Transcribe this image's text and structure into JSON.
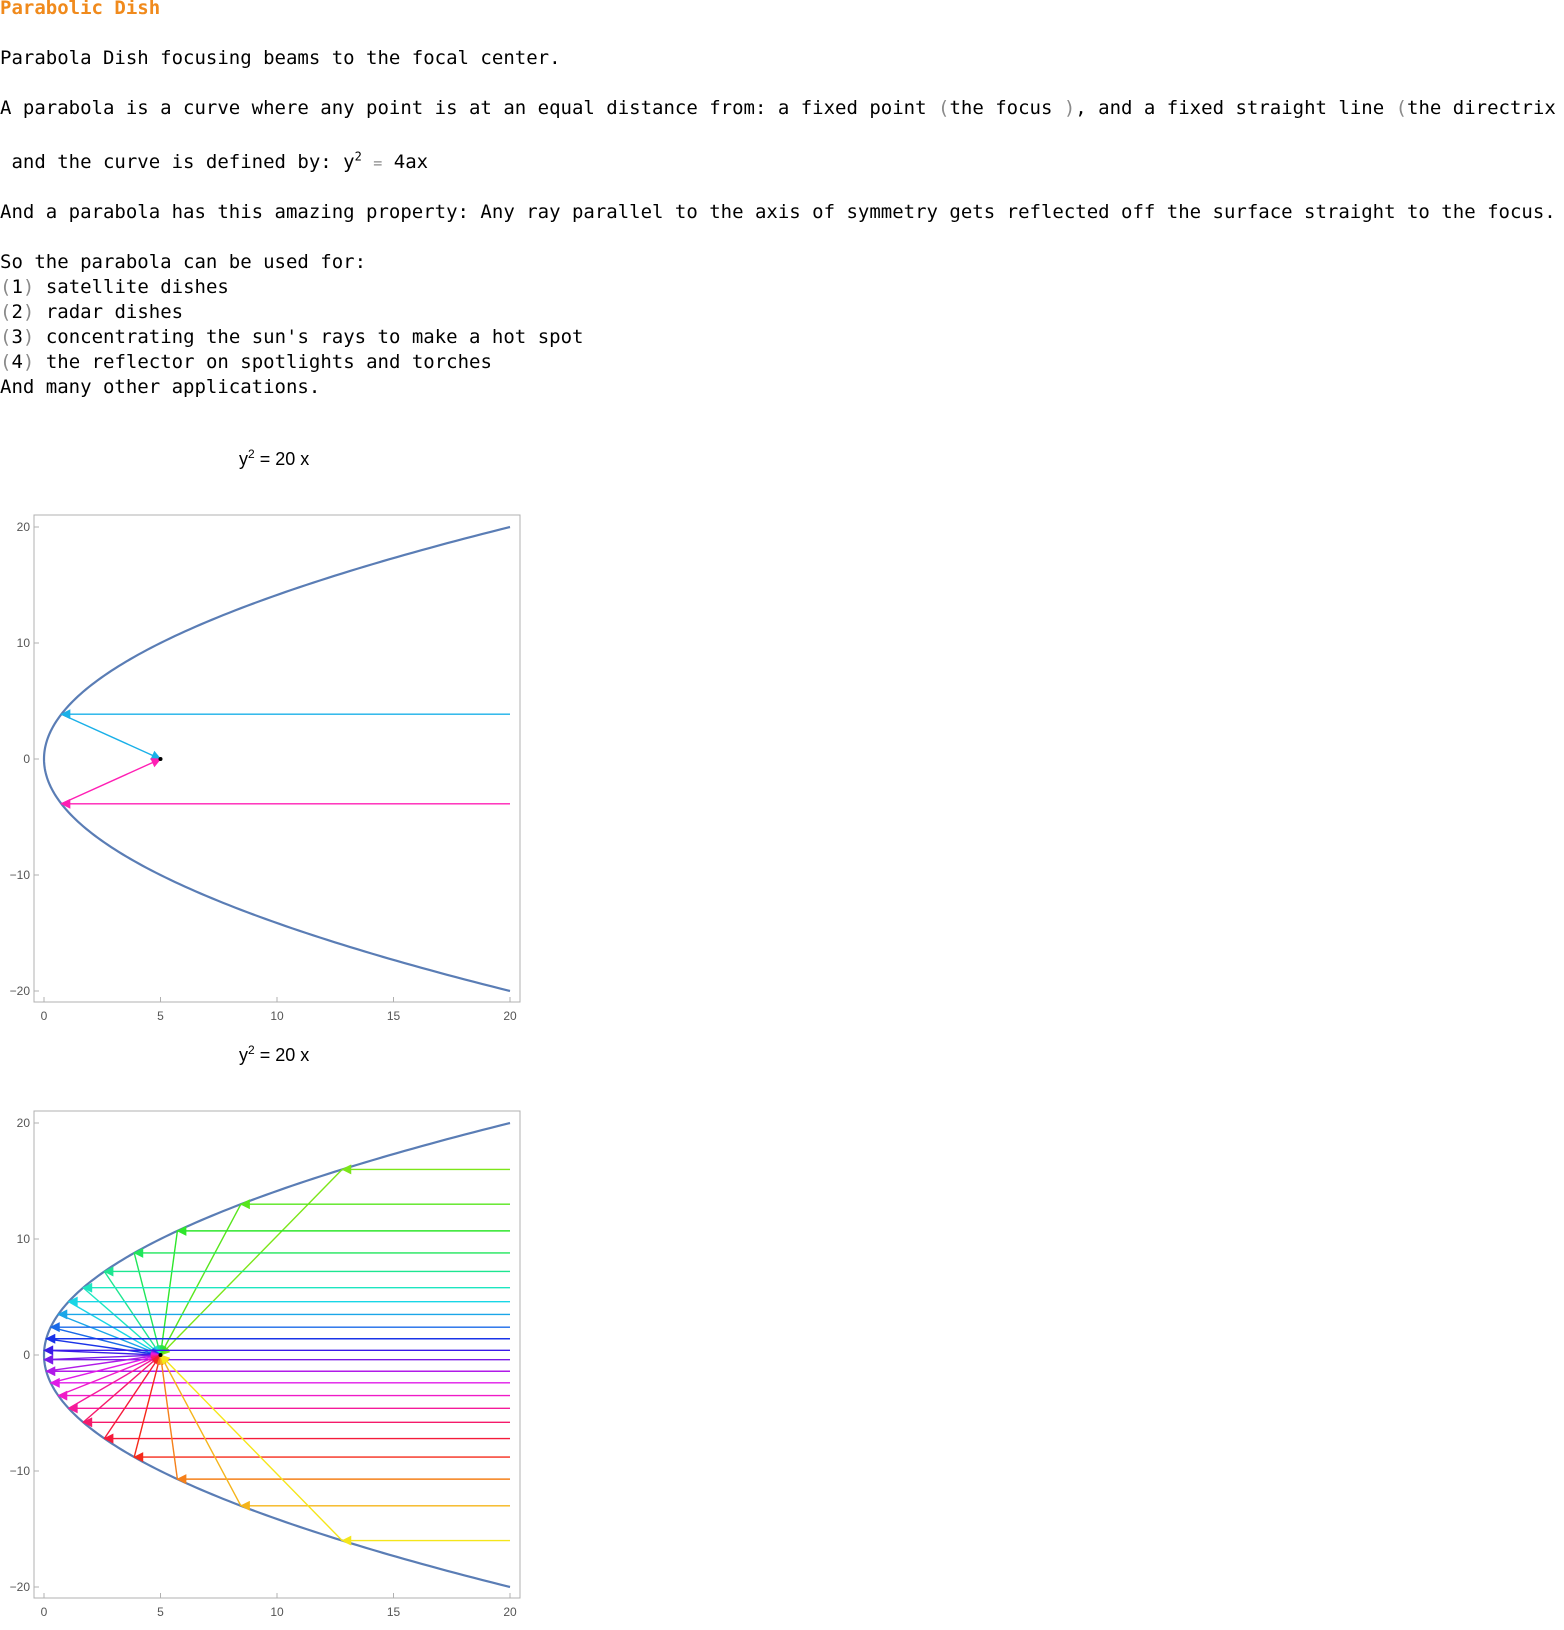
{
  "page": {
    "title": "Parabolic Dish",
    "intro": "Parabola Dish focusing beams to the focal center.",
    "definition": {
      "text_a": "A parabola is a curve where any point is at an equal distance from: a fixed point ",
      "paren_open": "(",
      "focus": "the focus ",
      "paren_close": ")",
      "text_b": ", and a fixed straight line ",
      "directrix": "the directrix "
    },
    "curve": {
      "text": " and the curve is defined by: y",
      "exp": "2",
      "eq": "=",
      "rhs": "4ax"
    },
    "property": "And a parabola has this amazing property: Any ray parallel to the axis of symmetry gets reflected off the surface straight to the focus.",
    "uses_intro": "So the parabola can be used for:",
    "uses": [
      {
        "num": "1",
        "text": "satellite dishes"
      },
      {
        "num": "2",
        "text": "radar dishes"
      },
      {
        "num": "3",
        "text": "concentrating the sun's rays to make a hot spot"
      },
      {
        "num": "4",
        "text": "the reflector on spotlights and torches"
      }
    ],
    "closing": "And many other applications."
  },
  "chart_data": [
    {
      "type": "line",
      "title": "y² = 20 x",
      "title_base": "y",
      "title_exp": "2",
      "title_rest": " = 20 x",
      "equation": "y^2 = 20x",
      "a": 5,
      "focus": [
        5,
        0
      ],
      "xlim": [
        0,
        20
      ],
      "ylim": [
        -20,
        20
      ],
      "xticks": [
        0,
        5,
        10,
        15,
        20
      ],
      "yticks": [
        -20,
        -10,
        0,
        10,
        20
      ],
      "curve_color": "#5a7db5",
      "rays": [
        {
          "y": 3.86,
          "color": "#1ab0e8"
        },
        {
          "y": -3.86,
          "color": "#ff1fb4"
        }
      ],
      "grid": false
    },
    {
      "type": "line",
      "title": "y² = 20 x",
      "title_base": "y",
      "title_exp": "2",
      "title_rest": " = 20 x",
      "equation": "y^2 = 20x",
      "a": 5,
      "focus": [
        5,
        0
      ],
      "xlim": [
        0,
        20
      ],
      "ylim": [
        -20,
        20
      ],
      "xticks": [
        0,
        5,
        10,
        15,
        20
      ],
      "yticks": [
        -20,
        -10,
        0,
        10,
        20
      ],
      "curve_color": "#5a7db5",
      "rays": [
        {
          "y": 16.0,
          "color": "#7ce619"
        },
        {
          "y": 13.0,
          "color": "#57e61d"
        },
        {
          "y": 10.7,
          "color": "#2ee62b"
        },
        {
          "y": 8.8,
          "color": "#1fe65a"
        },
        {
          "y": 7.2,
          "color": "#1de690"
        },
        {
          "y": 5.8,
          "color": "#1de6c0"
        },
        {
          "y": 4.6,
          "color": "#19d6e6"
        },
        {
          "y": 3.5,
          "color": "#1aa6e8"
        },
        {
          "y": 2.4,
          "color": "#1a6ae8"
        },
        {
          "y": 1.4,
          "color": "#1a33e8"
        },
        {
          "y": 0.4,
          "color": "#3a1ae8"
        },
        {
          "y": -0.4,
          "color": "#7a1ae8"
        },
        {
          "y": -1.4,
          "color": "#b01ae8"
        },
        {
          "y": -2.4,
          "color": "#e01ae8"
        },
        {
          "y": -3.5,
          "color": "#f01ac8"
        },
        {
          "y": -4.6,
          "color": "#f51a9a"
        },
        {
          "y": -5.8,
          "color": "#f51a6a"
        },
        {
          "y": -7.2,
          "color": "#f51a3a"
        },
        {
          "y": -8.8,
          "color": "#f52a1a"
        },
        {
          "y": -10.7,
          "color": "#f5801a"
        },
        {
          "y": -13.0,
          "color": "#f5b41a"
        },
        {
          "y": -16.0,
          "color": "#f5e61a"
        }
      ],
      "grid": false
    }
  ]
}
